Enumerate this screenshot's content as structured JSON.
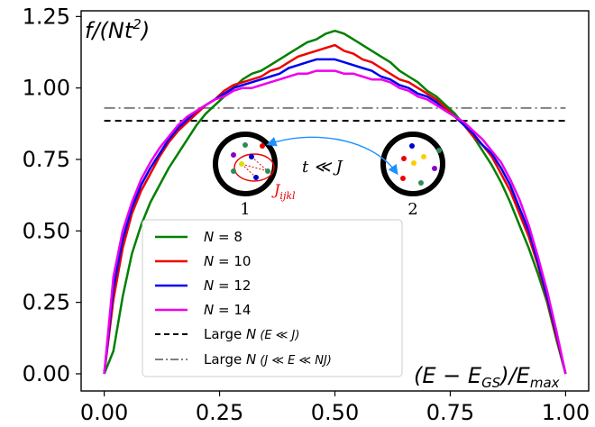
{
  "chart_data": {
    "type": "line",
    "x": [
      0.0,
      0.02,
      0.04,
      0.06,
      0.08,
      0.1,
      0.12,
      0.14,
      0.16,
      0.18,
      0.2,
      0.22,
      0.24,
      0.26,
      0.28,
      0.3,
      0.32,
      0.34,
      0.36,
      0.38,
      0.4,
      0.42,
      0.44,
      0.46,
      0.48,
      0.5,
      0.52,
      0.54,
      0.56,
      0.58,
      0.6,
      0.62,
      0.64,
      0.66,
      0.68,
      0.7,
      0.72,
      0.74,
      0.76,
      0.78,
      0.8,
      0.82,
      0.84,
      0.86,
      0.88,
      0.9,
      0.92,
      0.94,
      0.96,
      0.98,
      1.0
    ],
    "series": [
      {
        "name": "N = 8",
        "color": "#008000",
        "values": [
          0.0,
          0.08,
          0.27,
          0.42,
          0.52,
          0.6,
          0.66,
          0.72,
          0.77,
          0.82,
          0.87,
          0.91,
          0.94,
          0.97,
          1.0,
          1.03,
          1.05,
          1.06,
          1.08,
          1.1,
          1.12,
          1.14,
          1.16,
          1.17,
          1.19,
          1.2,
          1.19,
          1.17,
          1.15,
          1.13,
          1.11,
          1.09,
          1.06,
          1.04,
          1.02,
          0.99,
          0.97,
          0.94,
          0.91,
          0.87,
          0.83,
          0.78,
          0.73,
          0.67,
          0.6,
          0.52,
          0.44,
          0.35,
          0.25,
          0.12,
          0.0
        ]
      },
      {
        "name": "N = 10",
        "color": "#ee0000",
        "values": [
          0.0,
          0.26,
          0.44,
          0.56,
          0.64,
          0.7,
          0.76,
          0.81,
          0.85,
          0.88,
          0.91,
          0.94,
          0.96,
          0.99,
          1.01,
          1.02,
          1.03,
          1.04,
          1.06,
          1.07,
          1.09,
          1.11,
          1.12,
          1.13,
          1.14,
          1.15,
          1.13,
          1.12,
          1.1,
          1.09,
          1.07,
          1.05,
          1.03,
          1.02,
          1.0,
          0.98,
          0.96,
          0.93,
          0.9,
          0.87,
          0.83,
          0.8,
          0.76,
          0.7,
          0.64,
          0.56,
          0.48,
          0.38,
          0.26,
          0.13,
          0.0
        ]
      },
      {
        "name": "N = 12",
        "color": "#0000ee",
        "values": [
          0.0,
          0.3,
          0.47,
          0.58,
          0.66,
          0.72,
          0.77,
          0.82,
          0.86,
          0.89,
          0.92,
          0.94,
          0.96,
          0.98,
          1.0,
          1.01,
          1.02,
          1.03,
          1.04,
          1.05,
          1.07,
          1.08,
          1.09,
          1.1,
          1.1,
          1.1,
          1.09,
          1.08,
          1.07,
          1.06,
          1.04,
          1.03,
          1.01,
          1.0,
          0.98,
          0.97,
          0.95,
          0.92,
          0.9,
          0.87,
          0.84,
          0.8,
          0.77,
          0.72,
          0.66,
          0.58,
          0.5,
          0.39,
          0.27,
          0.14,
          0.0
        ]
      },
      {
        "name": "N = 14",
        "color": "#ee00ee",
        "values": [
          0.0,
          0.34,
          0.5,
          0.6,
          0.68,
          0.74,
          0.79,
          0.83,
          0.87,
          0.9,
          0.92,
          0.94,
          0.96,
          0.97,
          0.99,
          1.0,
          1.0,
          1.01,
          1.02,
          1.03,
          1.04,
          1.05,
          1.05,
          1.06,
          1.06,
          1.06,
          1.05,
          1.05,
          1.04,
          1.03,
          1.03,
          1.02,
          1.0,
          0.99,
          0.97,
          0.96,
          0.94,
          0.92,
          0.9,
          0.88,
          0.85,
          0.82,
          0.78,
          0.74,
          0.68,
          0.61,
          0.52,
          0.41,
          0.29,
          0.15,
          0.0
        ]
      }
    ],
    "reference_lines": [
      {
        "name": "Large N (E ≪ J)",
        "y": 0.885,
        "style": "dashed",
        "color": "#000000"
      },
      {
        "name": "Large N (J ≪ E ≪ NJ)",
        "y": 0.93,
        "style": "dashdot",
        "color": "#808080"
      }
    ],
    "xlabel": "(E − E_GS)/E_max",
    "ylabel": "f/(Nt²)",
    "xlim": [
      -0.05,
      1.05
    ],
    "ylim": [
      -0.06,
      1.27
    ],
    "xticks": [
      "0.00",
      "0.25",
      "0.50",
      "0.75",
      "1.00"
    ],
    "yticks": [
      "0.00",
      "0.25",
      "0.50",
      "0.75",
      "1.00",
      "1.25"
    ],
    "grid": false,
    "legend_position": "lower-left"
  },
  "labels": {
    "ylabel_f": "f",
    "ylabel_mid": "/(Nt",
    "ylabel_sup": "2",
    "ylabel_end": ")",
    "xlabel_open": "(E − E",
    "xlabel_sub1": "GS",
    "xlabel_mid": ")/E",
    "xlabel_sub2": "max"
  },
  "legend": {
    "entries": [
      {
        "n": "N",
        "rest": " = 8",
        "color": "#008000",
        "style": "solid"
      },
      {
        "n": "N",
        "rest": " = 10",
        "color": "#ee0000",
        "style": "solid"
      },
      {
        "n": "N",
        "rest": " = 12",
        "color": "#0000ee",
        "style": "solid"
      },
      {
        "n": "N",
        "rest": " = 14",
        "color": "#ee00ee",
        "style": "solid"
      },
      {
        "prefix": "Large ",
        "n": "N",
        "cond": " (E ≪ J)",
        "color": "#000000",
        "style": "dashed"
      },
      {
        "prefix": "Large ",
        "n": "N",
        "cond": " (J ≪ E ≪ NJ)",
        "color": "#808080",
        "style": "dashdot"
      }
    ]
  },
  "inset": {
    "dot1_label": "1",
    "dot2_label": "2",
    "coupling_label": "J",
    "coupling_sub": "ijkl",
    "hop_label": "t ≪ J"
  }
}
